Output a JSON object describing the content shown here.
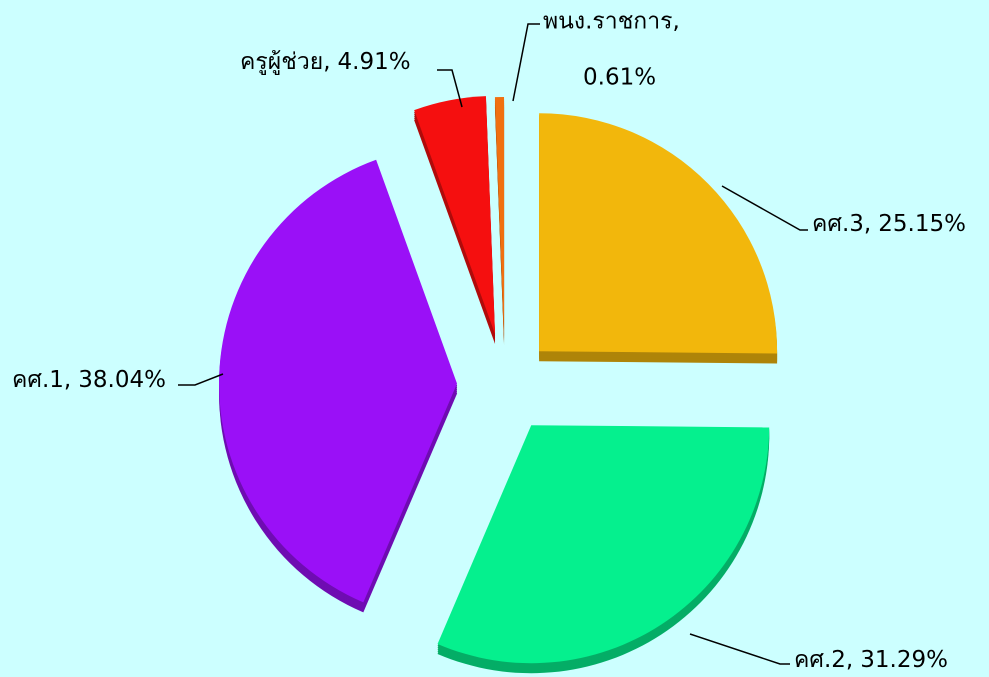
{
  "chart_data": {
    "type": "pie",
    "categories": [
      "คศ.3,",
      "คศ.2,",
      "คศ.1,",
      "ครูผู้ช่วย,",
      "พนง.ราชการ,"
    ],
    "values": [
      25.15,
      31.29,
      38.04,
      4.91,
      0.61
    ],
    "value_labels": [
      "25.15%",
      "31.29%",
      "38.04%",
      "4.91%",
      "0.61%"
    ],
    "colors": [
      "#f2b70c",
      "#05f08e",
      "#9a10f7",
      "#f50f0f",
      "#f07010"
    ]
  }
}
